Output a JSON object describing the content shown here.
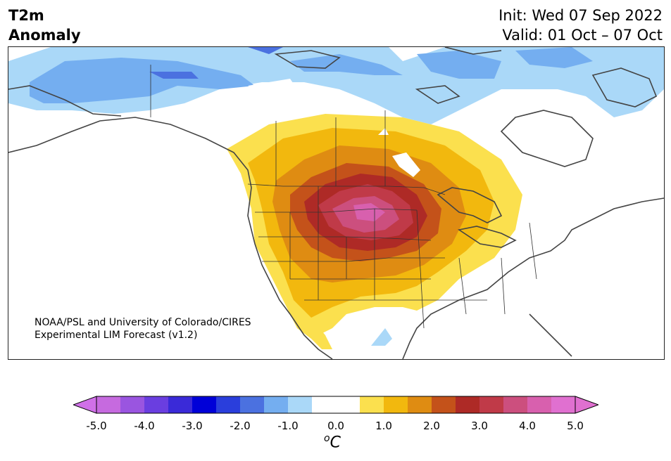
{
  "title": {
    "left_line1": "T2m",
    "left_line2": "Anomaly",
    "init": "Init: Wed 07 Sep 2022",
    "valid": "Valid: 01 Oct – 07 Oct"
  },
  "credit": {
    "line1": "NOAA/PSL and University of Colorado/CIRES",
    "line2": "Experimental LIM Forecast (v1.2)"
  },
  "colorbar": {
    "min": -5.0,
    "max": 5.0,
    "unit_base": "C",
    "unit_super": "o",
    "tick_labels": [
      "-5.0",
      "-4.0",
      "-3.0",
      "-2.0",
      "-1.0",
      "0.0",
      "1.0",
      "2.0",
      "3.0",
      "4.0",
      "5.0"
    ],
    "colors": [
      "#c66adf",
      "#9a55e0",
      "#6a3ee0",
      "#3a2ad8",
      "#0000d8",
      "#2a3edc",
      "#4b71e0",
      "#74aef0",
      "#aad8f8",
      "#ffffff",
      "#ffffff",
      "#fbe04e",
      "#f2b80e",
      "#df8c12",
      "#c4521a",
      "#ae2a26",
      "#c03a48",
      "#cc4f7e",
      "#d860ae",
      "#e070d0"
    ],
    "under_color": "#d070e8",
    "over_color": "#e070d0"
  },
  "map": {
    "region": "North America",
    "palette": {
      "land": "#ffffff",
      "coast": "#444444",
      "borders": "#333333"
    }
  }
}
